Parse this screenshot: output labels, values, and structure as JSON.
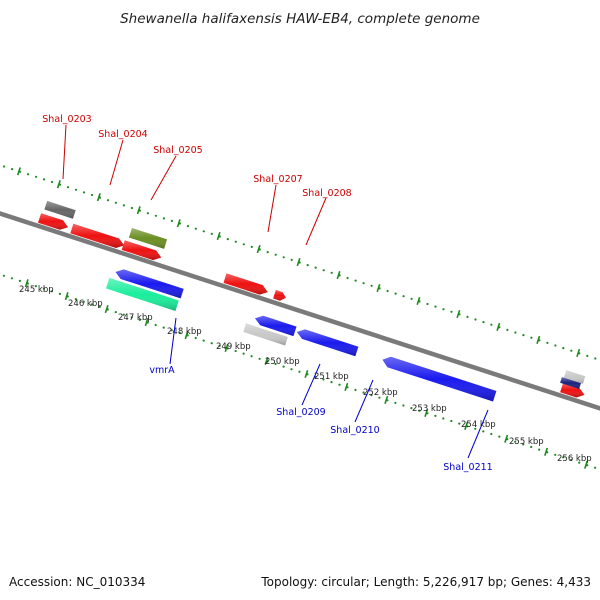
{
  "title": "Shewanella halifaxensis HAW-EB4, complete genome",
  "footer": {
    "accession": "Accession: NC_010334",
    "summary": "Topology: circular; Length: 5,226,917 bp; Genes: 4,433"
  },
  "colors": {
    "backbone": "#7a7a7a",
    "tick": "#1d8a1d",
    "forward_label": "#cc0000",
    "reverse_label": "#0000cc"
  },
  "axis": {
    "unit": "kbp",
    "tick_labels": [
      "245 kbp",
      "246 kbp",
      "247 kbp",
      "248 kbp",
      "249 kbp",
      "250 kbp",
      "251 kbp",
      "252 kbp",
      "253 kbp",
      "254 kbp",
      "255 kbp",
      "256 kbp"
    ]
  },
  "labels": {
    "forward": [
      "Shal_0203",
      "Shal_0204",
      "Shal_0205",
      "Shal_0207",
      "Shal_0208"
    ],
    "reverse": [
      "vmrA",
      "Shal_0209",
      "Shal_0210",
      "Shal_0211"
    ]
  },
  "features": {
    "forward_strand": [
      {
        "color": "#ee1111",
        "strand": "+"
      },
      {
        "color": "#ee1111",
        "strand": "+"
      },
      {
        "color": "#ee1111",
        "strand": "+"
      },
      {
        "color": "#ee1111",
        "strand": "+"
      },
      {
        "color": "#ee1111",
        "strand": "+"
      },
      {
        "color": "#ee1111",
        "strand": "+"
      },
      {
        "color": "#666666",
        "strand": "none"
      },
      {
        "color": "#6b8e23",
        "strand": "none"
      },
      {
        "color": "#c8c8c8",
        "strand": "none"
      },
      {
        "color": "#1a237e",
        "strand": "none"
      }
    ],
    "reverse_strand": [
      {
        "color": "#1a1aee",
        "strand": "-"
      },
      {
        "color": "#1aee9c",
        "strand": "none"
      },
      {
        "color": "#1a1aee",
        "strand": "-"
      },
      {
        "color": "#c8c8c8",
        "strand": "none"
      },
      {
        "color": "#1a1aee",
        "strand": "-"
      },
      {
        "color": "#1a1aee",
        "strand": "-"
      }
    ]
  }
}
